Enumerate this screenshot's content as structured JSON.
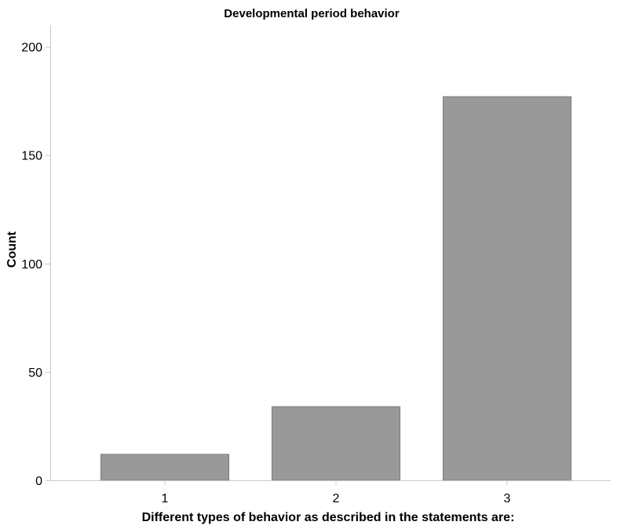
{
  "chart_data": {
    "type": "bar",
    "title": "Developmental period behavior",
    "xlabel": "Different types of behavior as described in the statements are:",
    "ylabel": "Count",
    "categories": [
      "1",
      "2",
      "3"
    ],
    "values": [
      12,
      34,
      177
    ],
    "ylim": [
      0,
      210
    ],
    "yticks": [
      0,
      50,
      100,
      150,
      200
    ],
    "grid": false,
    "legend": "none",
    "colors": {
      "bar_fill": "#999999",
      "bar_stroke": "#7a7a7a",
      "axis": "#c8c8c8",
      "background": "#ffffff"
    }
  }
}
